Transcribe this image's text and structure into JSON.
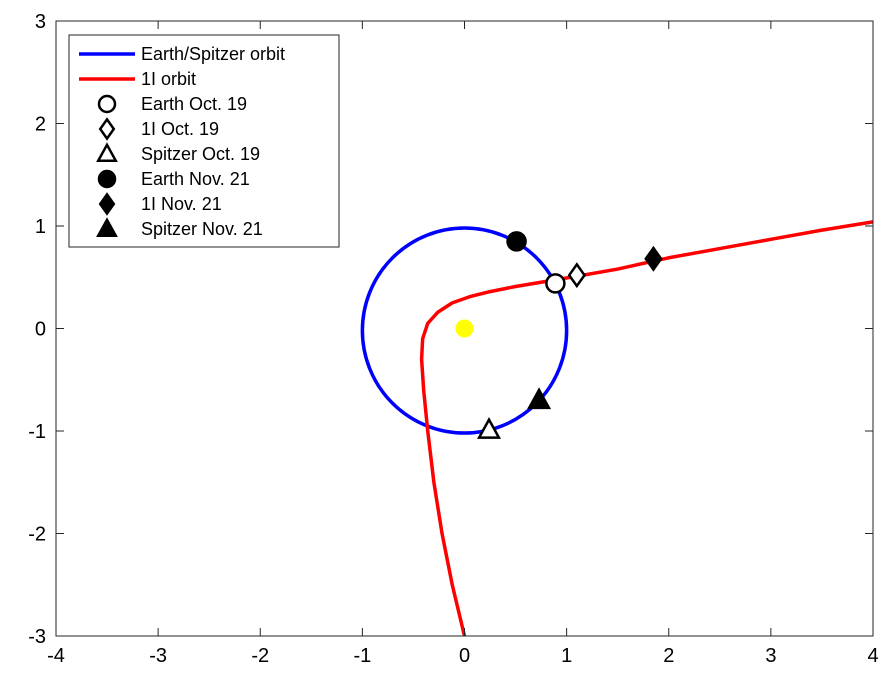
{
  "chart_data": {
    "type": "line",
    "title": "",
    "xlabel": "",
    "ylabel": "",
    "xlim": [
      -4,
      4
    ],
    "ylim": [
      -3,
      3
    ],
    "xticks": [
      -4,
      -3,
      -2,
      -1,
      0,
      1,
      2,
      3,
      4
    ],
    "yticks": [
      -3,
      -2,
      -1,
      0,
      1,
      2,
      3
    ],
    "grid": false,
    "legend_position": "top-left",
    "series": [
      {
        "name": "Earth/Spitzer orbit",
        "kind": "line",
        "color": "#0000ff",
        "shape": "circle",
        "center": [
          0,
          -0.02
        ],
        "radius": 1.0
      },
      {
        "name": "1I orbit",
        "kind": "line",
        "color": "#ff0000",
        "x": [
          0.0,
          -0.12,
          -0.22,
          -0.3,
          -0.36,
          -0.4,
          -0.42,
          -0.41,
          -0.36,
          -0.26,
          -0.12,
          0.05,
          0.25,
          0.5,
          0.8,
          1.1,
          1.5,
          2.0,
          2.5,
          3.0,
          3.5,
          4.0
        ],
        "y": [
          -3.0,
          -2.5,
          -2.0,
          -1.5,
          -1.0,
          -0.6,
          -0.3,
          -0.1,
          0.05,
          0.16,
          0.25,
          0.31,
          0.36,
          0.41,
          0.46,
          0.51,
          0.58,
          0.69,
          0.78,
          0.87,
          0.96,
          1.04
        ]
      },
      {
        "name": "Earth Oct. 19",
        "kind": "marker",
        "marker": "circle",
        "filled": false,
        "x": [
          0.89
        ],
        "y": [
          0.44
        ]
      },
      {
        "name": "1I Oct. 19",
        "kind": "marker",
        "marker": "diamond",
        "filled": false,
        "x": [
          1.1
        ],
        "y": [
          0.52
        ]
      },
      {
        "name": "Spitzer Oct. 19",
        "kind": "marker",
        "marker": "triangle",
        "filled": false,
        "x": [
          0.24
        ],
        "y": [
          -0.99
        ]
      },
      {
        "name": "Earth Nov. 21",
        "kind": "marker",
        "marker": "circle",
        "filled": true,
        "x": [
          0.51
        ],
        "y": [
          0.85
        ]
      },
      {
        "name": "1I Nov. 21",
        "kind": "marker",
        "marker": "diamond",
        "filled": true,
        "x": [
          1.85
        ],
        "y": [
          0.68
        ]
      },
      {
        "name": "Spitzer Nov. 21",
        "kind": "marker",
        "marker": "triangle",
        "filled": true,
        "x": [
          0.73
        ],
        "y": [
          -0.7
        ]
      }
    ],
    "annotations": [
      {
        "kind": "point",
        "x": 0.0,
        "y": 0.0,
        "color": "#ffff00"
      }
    ]
  }
}
